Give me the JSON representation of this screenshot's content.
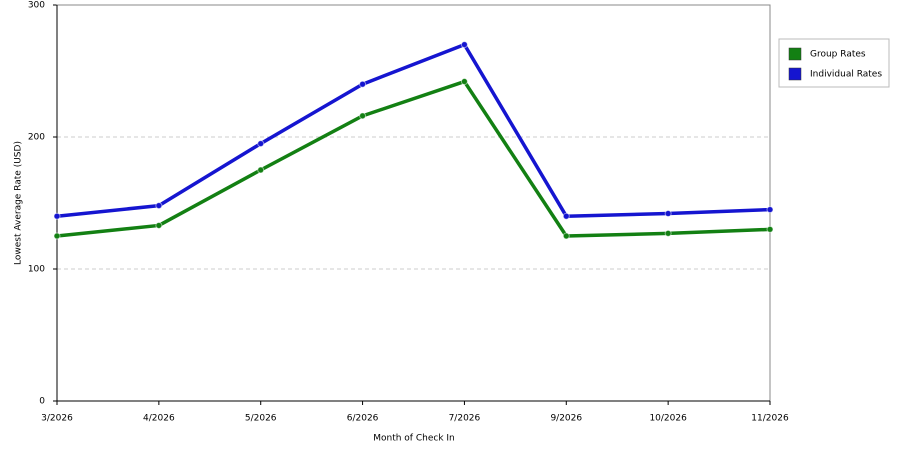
{
  "chart_data": {
    "type": "line",
    "x_label": "Month of Check In",
    "y_label": "Lowest Average Rate (USD)",
    "categories": [
      "3/2026",
      "4/2026",
      "5/2026",
      "6/2026",
      "7/2026",
      "9/2026",
      "10/2026",
      "11/2026"
    ],
    "series": [
      {
        "name": "Group Rates",
        "color": "#138013",
        "values": [
          125,
          133,
          175,
          216,
          242,
          125,
          127,
          130
        ]
      },
      {
        "name": "Individual Rates",
        "color": "#1515d0",
        "values": [
          140,
          148,
          195,
          240,
          270,
          140,
          142,
          145
        ]
      }
    ],
    "ylim": [
      0,
      300
    ],
    "yticks": [
      0,
      100,
      200,
      300
    ],
    "grid": true,
    "legend": "top-right"
  }
}
